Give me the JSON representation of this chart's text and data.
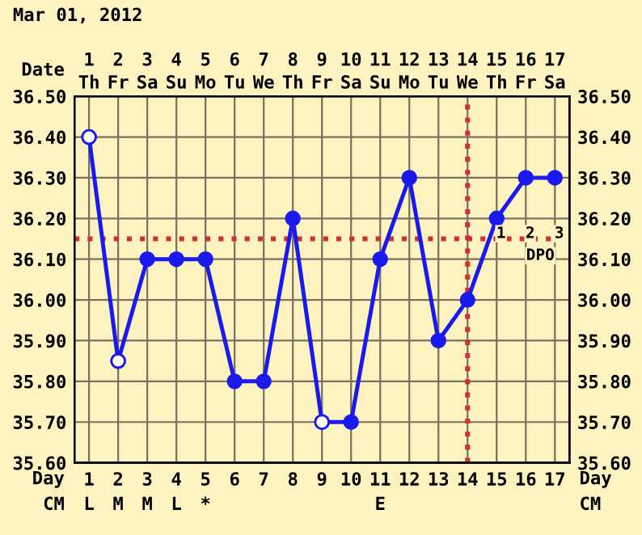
{
  "chart_data": {
    "type": "line",
    "title": "Mar 01, 2012",
    "x2label": "Date",
    "xlabel": "Day",
    "categories": [
      "1",
      "2",
      "3",
      "4",
      "5",
      "6",
      "7",
      "8",
      "9",
      "10",
      "11",
      "12",
      "13",
      "14",
      "15",
      "16",
      "17"
    ],
    "x2lim": [
      0.5,
      17.5
    ],
    "x2ticks": [
      1,
      2,
      3,
      4,
      5,
      6,
      7,
      8,
      9,
      10,
      11,
      12,
      13,
      14,
      15,
      16,
      17
    ],
    "series": [
      {
        "color": "#1a1aee",
        "marker": "circle",
        "values": [
          36.4,
          35.85,
          36.1,
          36.1,
          36.1,
          35.8,
          35.8,
          36.2,
          35.7,
          35.7,
          36.1,
          36.3,
          35.9,
          36.0,
          36.2,
          36.3,
          36.3
        ]
      },
      {
        "type": "scatter",
        "color": "#ffffff",
        "marker": "circle",
        "values": [
          36.4,
          35.85,
          null,
          null,
          null,
          null,
          null,
          null,
          35.7,
          null,
          null,
          null,
          null,
          null,
          null,
          null,
          null
        ]
      }
    ],
    "ylim": [
      35.6,
      36.5
    ],
    "yticks": [
      {
        "value": 35.6,
        "label": "35.60"
      },
      {
        "value": 35.7,
        "label": "35.70"
      },
      {
        "value": 35.8,
        "label": "35.80"
      },
      {
        "value": 35.9,
        "label": "35.90"
      },
      {
        "value": 36.0,
        "label": "36.00"
      },
      {
        "value": 36.1,
        "label": "36.10"
      },
      {
        "value": 36.2,
        "label": "36.20"
      },
      {
        "value": 36.3,
        "label": "36.30"
      },
      {
        "value": 36.4,
        "label": "36.40"
      },
      {
        "value": 36.5,
        "label": "36.50"
      }
    ],
    "y2lim": [
      35.6,
      36.5
    ],
    "y2ticks": [
      {
        "value": 35.6,
        "label": "35.60"
      },
      {
        "value": 35.7,
        "label": "35.70"
      },
      {
        "value": 35.8,
        "label": "35.80"
      },
      {
        "value": 35.9,
        "label": "35.90"
      },
      {
        "value": 36.0,
        "label": "36.00"
      },
      {
        "value": 36.1,
        "label": "36.10"
      },
      {
        "value": 36.2,
        "label": "36.20"
      },
      {
        "value": 36.3,
        "label": "36.30"
      },
      {
        "value": 36.4,
        "label": "36.40"
      },
      {
        "value": 36.5,
        "label": "36.50"
      }
    ],
    "grid": true,
    "ref_lines": [
      {
        "axis": "y",
        "value": 36.15,
        "color": "#d03030",
        "line_style": "dotted"
      },
      {
        "axis": "x",
        "value": "14",
        "color": "#d03030",
        "line_style": "dotted"
      }
    ],
    "annotations": [
      "Th",
      "Fr",
      "Sa",
      "Su",
      "Mo",
      "Tu",
      "We",
      "Th",
      "Fr",
      "Sa",
      "Su",
      "Mo",
      "Tu",
      "We",
      "Th",
      "Fr",
      "Sa",
      "1",
      "2",
      "3",
      "DPO",
      "CM",
      "L",
      "M",
      "M",
      "L",
      "*",
      "E"
    ]
  }
}
